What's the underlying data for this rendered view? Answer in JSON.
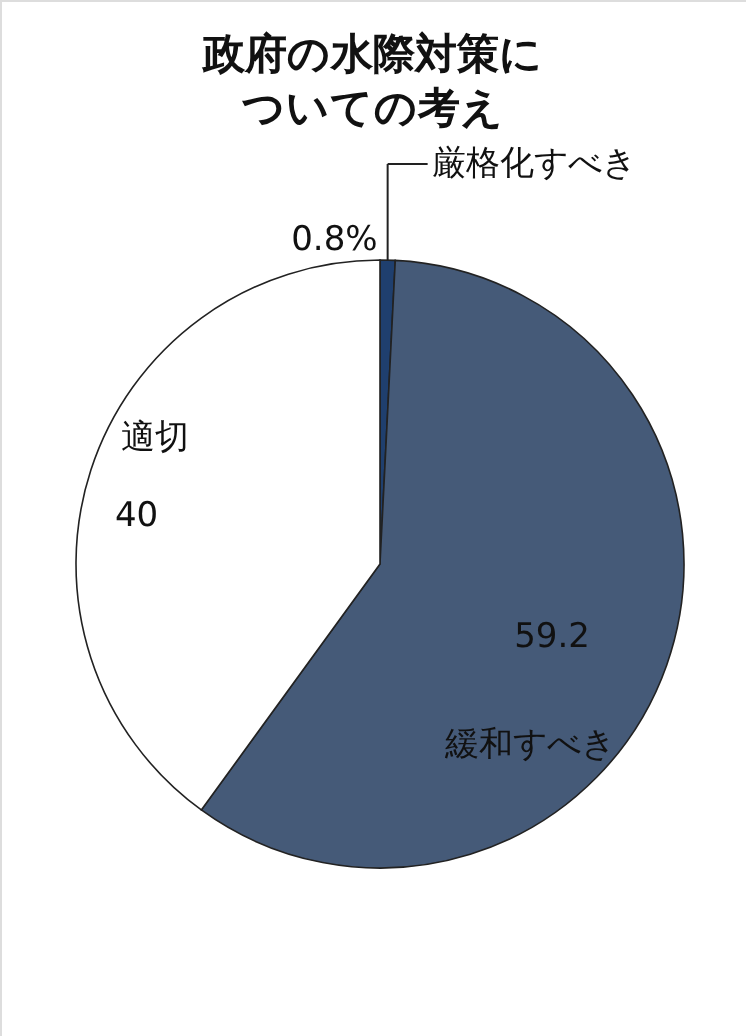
{
  "chart_data": {
    "type": "pie",
    "title": "政府の水際対策についての考え",
    "categories": [
      "厳格化すべき",
      "緩和すべき",
      "適切"
    ],
    "values": [
      0.8,
      59.2,
      40
    ],
    "value_labels": [
      "0.8%",
      "59.2",
      "40"
    ],
    "colors": [
      "#1f3f6e",
      "#455a78",
      "#ffffff"
    ]
  }
}
